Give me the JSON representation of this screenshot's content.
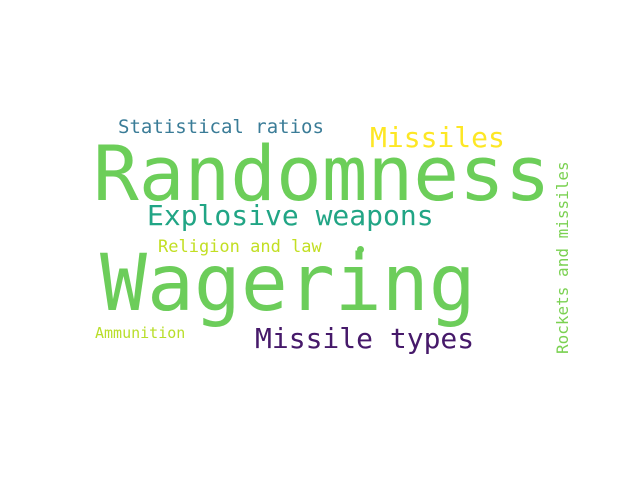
{
  "words": {
    "randomness": {
      "text": "Randomness",
      "color": "#6cce59"
    },
    "wagering": {
      "text": "Wagering",
      "color": "#6ccd5a"
    },
    "explosive": {
      "text": "Explosive weapons",
      "color": "#21a585"
    },
    "missiles": {
      "text": "Missiles",
      "color": "#fde725"
    },
    "missile_types": {
      "text": "Missile types",
      "color": "#46196a"
    },
    "statistical": {
      "text": "Statistical ratios",
      "color": "#3a7c97"
    },
    "religion": {
      "text": "Religion and law",
      "color": "#c2df23"
    },
    "ammunition": {
      "text": "Ammunition",
      "color": "#b8de29"
    },
    "rockets": {
      "text": "Rockets and missiles",
      "color": "#7ad151"
    }
  },
  "dot": {
    "color": "#6ccd5a"
  }
}
